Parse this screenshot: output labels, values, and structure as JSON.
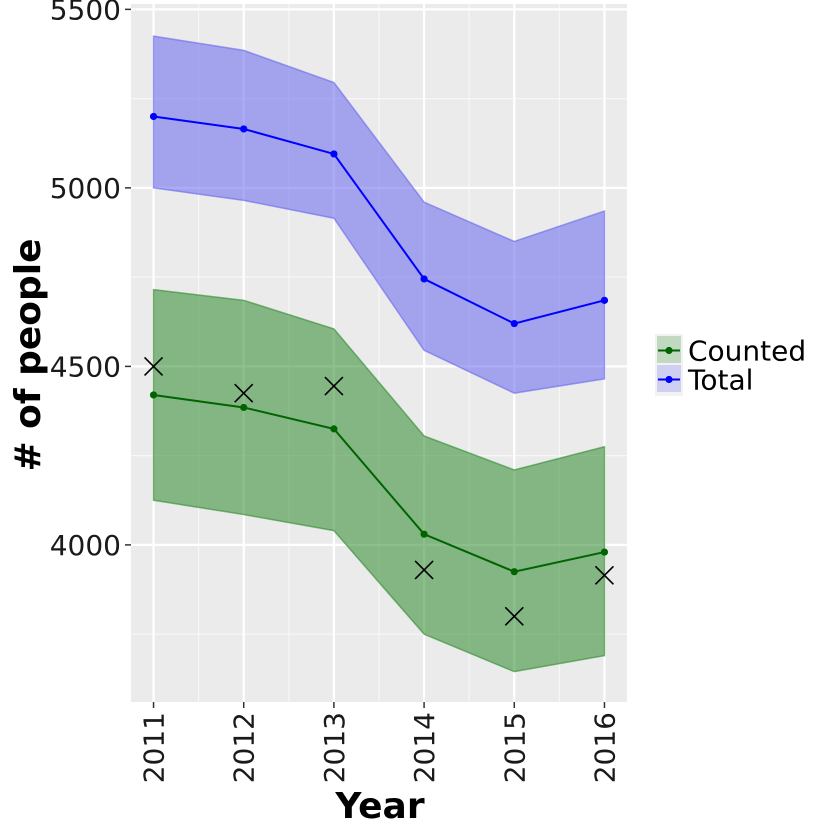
{
  "chart_data": {
    "type": "line",
    "xlabel": "Year",
    "ylabel": "# of people",
    "x": [
      2011,
      2012,
      2013,
      2014,
      2015,
      2016
    ],
    "xticks": [
      "2011",
      "2012",
      "2013",
      "2014",
      "2015",
      "2016"
    ],
    "xlim": [
      2010.75,
      2016.25
    ],
    "yticks": [
      4000,
      4500,
      5000,
      5500
    ],
    "ytick_labels": [
      "4000",
      "4500",
      "5000",
      "5500"
    ],
    "ylim": [
      3560,
      5515
    ],
    "grid": true,
    "legend_position": "right",
    "series": [
      {
        "name": "Counted",
        "color": "#006400",
        "band_color": "#2e8b2e",
        "values": [
          4420,
          4385,
          4325,
          4030,
          3925,
          3980
        ],
        "lower": [
          4125,
          4085,
          4040,
          3750,
          3645,
          3690
        ],
        "upper": [
          4715,
          4685,
          4605,
          4305,
          4210,
          4275
        ]
      },
      {
        "name": "Total",
        "color": "#0000ff",
        "band_color": "#6666ee",
        "values": [
          5200,
          5165,
          5095,
          4745,
          4620,
          4685
        ],
        "lower": [
          5000,
          4965,
          4915,
          4545,
          4425,
          4465
        ],
        "upper": [
          5425,
          5385,
          5295,
          4960,
          4850,
          4935
        ]
      }
    ],
    "observed": {
      "marker": "x",
      "color": "#000000",
      "values": [
        4500,
        4425,
        4445,
        3930,
        3800,
        3915
      ]
    }
  }
}
